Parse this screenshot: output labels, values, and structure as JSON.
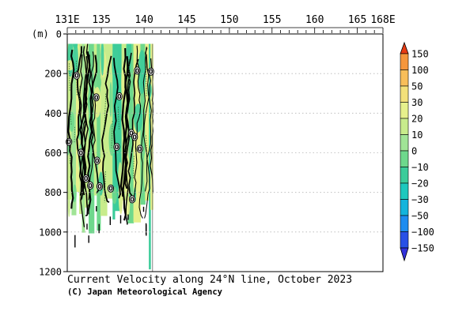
{
  "chart_data": {
    "type": "heatmap",
    "title": "Current Velocity along 24°N line, October 2023",
    "credit": "(C) Japan Meteorological Agency",
    "x_axis": {
      "range": [
        131,
        168
      ],
      "tick_labels": [
        {
          "value": 131,
          "label": "131E"
        },
        {
          "value": 135,
          "label": "135"
        },
        {
          "value": 140,
          "label": "140"
        },
        {
          "value": 145,
          "label": "145"
        },
        {
          "value": 150,
          "label": "150"
        },
        {
          "value": 155,
          "label": "155"
        },
        {
          "value": 160,
          "label": "160"
        },
        {
          "value": 165,
          "label": "165"
        },
        {
          "value": 168,
          "label": "168E"
        }
      ]
    },
    "y_axis": {
      "label": "(m)",
      "range": [
        0,
        1200
      ],
      "inverted": true,
      "ticks": [
        0,
        200,
        400,
        600,
        800,
        1000,
        1200
      ]
    },
    "grid": {
      "dotted_depths": [
        200,
        400,
        600,
        800,
        1000
      ]
    },
    "data_extent": {
      "lon_min": 131,
      "lon_max": 141,
      "depth_top": 50,
      "depth_bottom": 1200
    },
    "zero_contour_labels": [
      {
        "lon": 132.1,
        "depth": 210,
        "text": "0"
      },
      {
        "lon": 139.2,
        "depth": 185,
        "text": "0"
      },
      {
        "lon": 140.8,
        "depth": 190,
        "text": "0"
      },
      {
        "lon": 134.4,
        "depth": 320,
        "text": "0"
      },
      {
        "lon": 137.1,
        "depth": 315,
        "text": "0"
      },
      {
        "lon": 131.2,
        "depth": 545,
        "text": "0"
      },
      {
        "lon": 132.6,
        "depth": 600,
        "text": "0"
      },
      {
        "lon": 136.8,
        "depth": 570,
        "text": "0"
      },
      {
        "lon": 138.5,
        "depth": 500,
        "text": "0"
      },
      {
        "lon": 138.9,
        "depth": 520,
        "text": "0"
      },
      {
        "lon": 139.5,
        "depth": 580,
        "text": "0"
      },
      {
        "lon": 134.5,
        "depth": 640,
        "text": "0"
      },
      {
        "lon": 133.2,
        "depth": 730,
        "text": "0"
      },
      {
        "lon": 133.7,
        "depth": 765,
        "text": "0"
      },
      {
        "lon": 134.8,
        "depth": 770,
        "text": "0"
      },
      {
        "lon": 136.1,
        "depth": 780,
        "text": "0"
      },
      {
        "lon": 138.6,
        "depth": 835,
        "text": "0"
      }
    ],
    "colorbar": {
      "entries": [
        {
          "label": "150",
          "color": "#f05a1e"
        },
        {
          "label": "100",
          "color": "#f5963c"
        },
        {
          "label": "50",
          "color": "#f8be5a"
        },
        {
          "label": "30",
          "color": "#f3e07a"
        },
        {
          "label": "20",
          "color": "#e6f08c"
        },
        {
          "label": "10",
          "color": "#c8ec8c"
        },
        {
          "label": "0",
          "color": "#a0e496"
        },
        {
          "label": "−10",
          "color": "#6ed88c"
        },
        {
          "label": "−20",
          "color": "#3ccc9a"
        },
        {
          "label": "−30",
          "color": "#1ec8be"
        },
        {
          "label": "−50",
          "color": "#14b4dc"
        },
        {
          "label": "−100",
          "color": "#1e8cf0"
        },
        {
          "label": "−150",
          "color": "#2850e6"
        }
      ],
      "top_cap_color": "#e83c14",
      "bottom_cap_color": "#3232dc"
    }
  }
}
